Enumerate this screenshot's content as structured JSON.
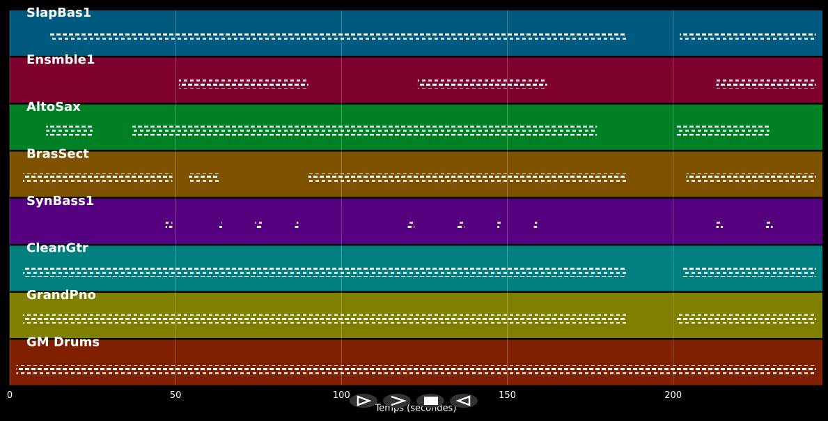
{
  "chart_data": {
    "type": "piano-roll",
    "xlabel": "Temps (secondes)",
    "xlim": [
      0,
      245
    ],
    "xticks": [
      0,
      50,
      100,
      150,
      200
    ],
    "grid": true,
    "tracks": [
      {
        "name": "SlapBas1",
        "color": "#005a80",
        "phrases": [
          [
            12,
            186
          ],
          [
            202,
            243
          ]
        ]
      },
      {
        "name": "Ensmble1",
        "color": "#7d002d",
        "phrases": [
          [
            51,
            90
          ],
          [
            123,
            162
          ],
          [
            213,
            243
          ]
        ]
      },
      {
        "name": "AltoSax",
        "color": "#008025",
        "phrases": [
          [
            11,
            25
          ],
          [
            37,
            177
          ],
          [
            201,
            229
          ]
        ]
      },
      {
        "name": "BrasSect",
        "color": "#7f5200",
        "phrases": [
          [
            4,
            49
          ],
          [
            54,
            63
          ],
          [
            90,
            186
          ],
          [
            204,
            243
          ]
        ]
      },
      {
        "name": "SynBass1",
        "color": "#55007f",
        "phrases": [
          [
            47,
            49
          ],
          [
            63,
            64
          ],
          [
            74,
            76
          ],
          [
            86,
            87
          ],
          [
            120,
            122
          ],
          [
            135,
            137
          ],
          [
            147,
            148
          ],
          [
            158,
            159
          ],
          [
            213,
            215
          ],
          [
            228,
            230
          ]
        ]
      },
      {
        "name": "CleanGtr",
        "color": "#007f80",
        "phrases": [
          [
            4,
            186
          ],
          [
            203,
            243
          ]
        ]
      },
      {
        "name": "GrandPno",
        "color": "#7f7f00",
        "phrases": [
          [
            4,
            186
          ],
          [
            201,
            243
          ]
        ]
      },
      {
        "name": "GM Drums",
        "color": "#7f2000",
        "phrases": [
          [
            2,
            243
          ]
        ]
      }
    ]
  }
}
